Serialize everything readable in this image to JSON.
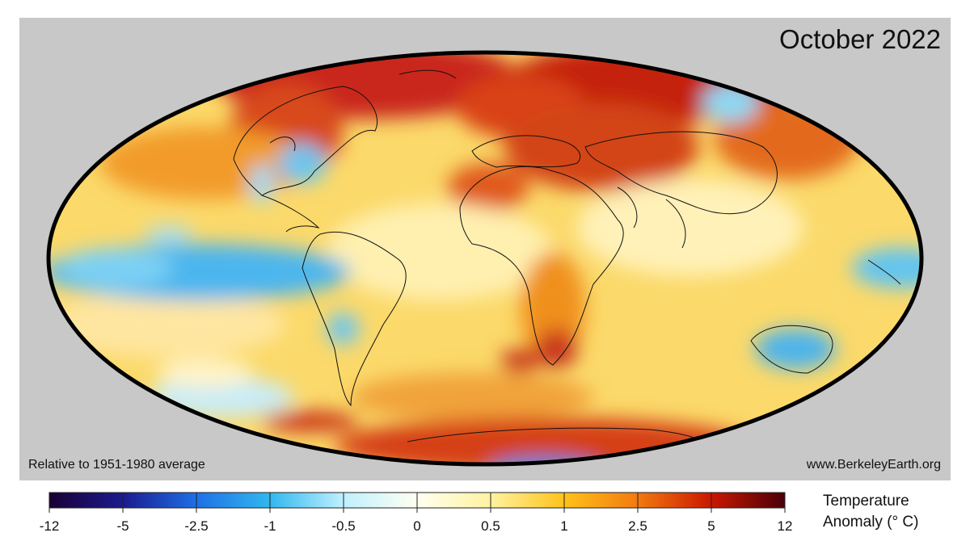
{
  "map": {
    "title": "October 2022",
    "baseline_note": "Relative to 1951-1980 average",
    "source": "www.BerkeleyEarth.org"
  },
  "colorbar": {
    "title_line1": "Temperature",
    "title_line2": "Anomaly (° C)",
    "ticks": [
      "-12",
      "-5",
      "-2.5",
      "-1",
      "-0.5",
      "0",
      "0.5",
      "1",
      "2.5",
      "5",
      "12"
    ],
    "colors": [
      "#1a0033",
      "#1b1b8f",
      "#1f6fe6",
      "#31b8ee",
      "#bff0ff",
      "#fffff0",
      "#fff2a0",
      "#ffc21a",
      "#f27a10",
      "#c91700",
      "#4a0008"
    ]
  }
}
